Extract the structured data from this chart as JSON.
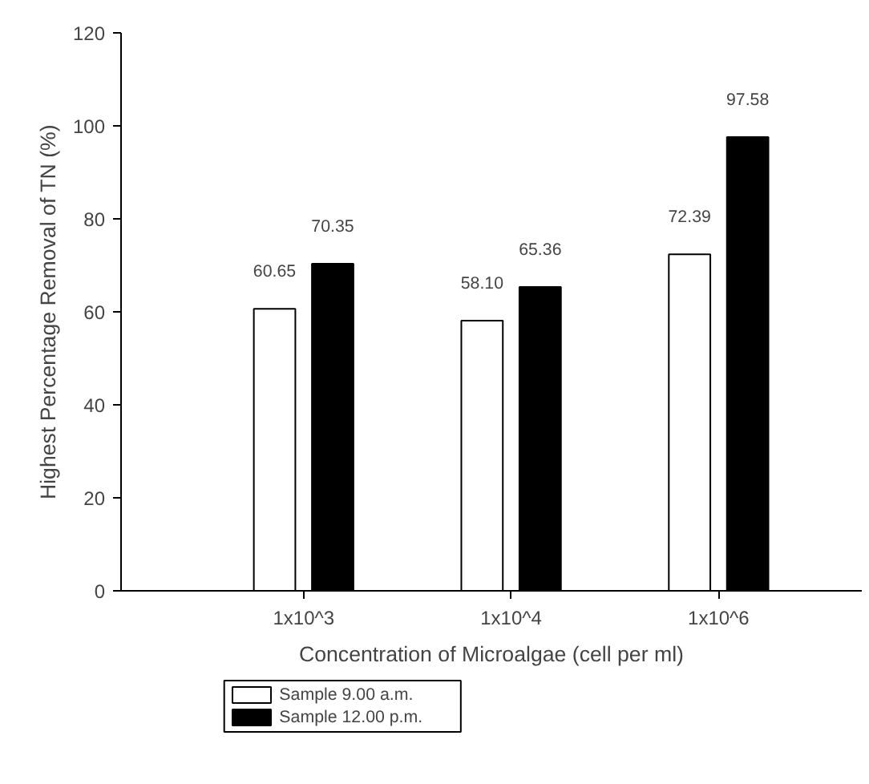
{
  "chart_data": {
    "type": "bar",
    "xlabel": "Concentration of Microalgae (cell per ml)",
    "ylabel": "Highest Percentage Removal of TN (%)",
    "categories": [
      "1x10^3",
      "1x10^4",
      "1x10^6"
    ],
    "series": [
      {
        "name": "Sample 9.00 a.m.",
        "color": "#ffffff",
        "values": [
          60.65,
          58.1,
          72.39
        ],
        "value_labels": [
          "60.65",
          "58.10",
          "72.39"
        ]
      },
      {
        "name": "Sample 12.00 p.m.",
        "color": "#000000",
        "values": [
          70.35,
          65.36,
          97.58
        ],
        "value_labels": [
          "70.35",
          "65.36",
          "97.58"
        ]
      }
    ],
    "ylim": [
      0,
      120
    ],
    "yticks": [
      0,
      20,
      40,
      60,
      80,
      100,
      120
    ],
    "grid": false,
    "legend": "bottom left"
  }
}
